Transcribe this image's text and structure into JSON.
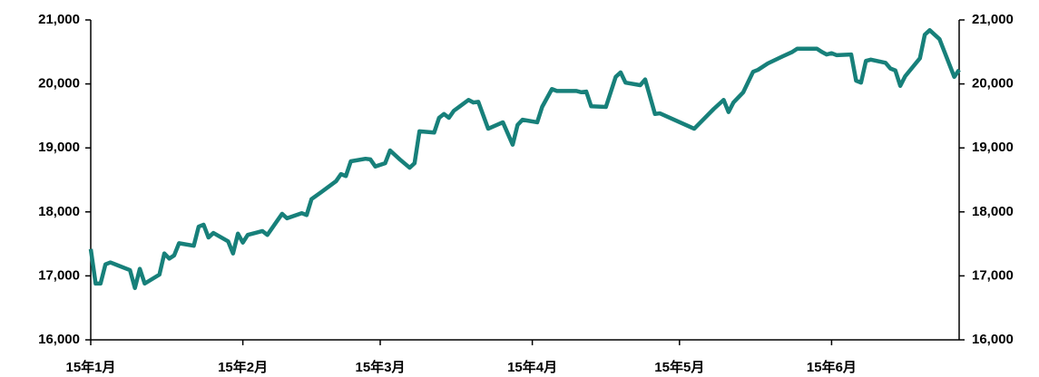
{
  "chart_data": {
    "type": "line",
    "x": [
      0,
      1,
      2,
      3,
      4,
      8,
      9,
      10,
      11,
      14,
      15,
      16,
      17,
      18,
      21,
      22,
      23,
      24,
      25,
      28,
      29,
      30,
      31,
      32,
      35,
      36,
      39,
      40,
      43,
      44,
      45,
      47,
      50,
      51,
      52,
      53,
      56,
      57,
      58,
      60,
      61,
      63,
      65,
      66,
      67,
      70,
      71,
      72,
      73,
      74,
      77,
      78,
      79,
      81,
      84,
      86,
      87,
      88,
      91,
      92,
      94,
      95,
      99,
      100,
      101,
      102,
      105,
      107,
      108,
      109,
      112,
      113,
      115,
      116,
      123,
      127,
      129,
      130,
      131,
      133,
      135,
      136,
      138,
      141,
      143,
      144,
      148,
      149,
      150,
      151,
      152,
      155,
      156,
      157,
      158,
      159,
      162,
      163,
      164,
      165,
      166,
      169,
      170,
      171,
      173,
      176,
      177
    ],
    "series": [
      {
        "name": "",
        "color": "#17807a",
        "values": [
          17420,
          16880,
          16880,
          17180,
          17210,
          17090,
          16810,
          17110,
          16880,
          17020,
          17350,
          17270,
          17320,
          17510,
          17470,
          17770,
          17800,
          17600,
          17670,
          17540,
          17350,
          17660,
          17520,
          17640,
          17700,
          17640,
          17970,
          17900,
          17980,
          17950,
          18200,
          18310,
          18480,
          18590,
          18560,
          18790,
          18830,
          18820,
          18710,
          18760,
          18960,
          18820,
          18690,
          18760,
          19260,
          19240,
          19470,
          19530,
          19470,
          19580,
          19750,
          19710,
          19720,
          19300,
          19400,
          19050,
          19360,
          19440,
          19400,
          19640,
          19920,
          19890,
          19890,
          19870,
          19880,
          19650,
          19640,
          20110,
          20180,
          20020,
          19980,
          20070,
          19530,
          19540,
          19300,
          19610,
          19750,
          19560,
          19710,
          19870,
          20190,
          20220,
          20320,
          20430,
          20500,
          20550,
          20550,
          20500,
          20460,
          20480,
          20450,
          20460,
          20050,
          20020,
          20360,
          20380,
          20330,
          20240,
          20210,
          19970,
          20120,
          20400,
          20770,
          20840,
          20700,
          20110,
          20220
        ]
      }
    ],
    "xlim": [
      0,
      177
    ],
    "xticks": [
      {
        "value": 0,
        "label": "15年1月"
      },
      {
        "value": 31,
        "label": "15年2月"
      },
      {
        "value": 59,
        "label": "15年3月"
      },
      {
        "value": 90,
        "label": "15年4月"
      },
      {
        "value": 120,
        "label": "15年5月"
      },
      {
        "value": 151,
        "label": "15年6月"
      }
    ],
    "ylim": [
      16000,
      21000
    ],
    "yticks": [
      {
        "value": 16000,
        "label": "16,000"
      },
      {
        "value": 17000,
        "label": "17,000"
      },
      {
        "value": 18000,
        "label": "18,000"
      },
      {
        "value": 19000,
        "label": "19,000"
      },
      {
        "value": 20000,
        "label": "20,000"
      },
      {
        "value": 21000,
        "label": "21,000"
      }
    ],
    "y2lim": [
      16000,
      21000
    ],
    "y2ticks": [
      {
        "value": 16000,
        "label": "16,000"
      },
      {
        "value": 17000,
        "label": "17,000"
      },
      {
        "value": 18000,
        "label": "18,000"
      },
      {
        "value": 19000,
        "label": "19,000"
      },
      {
        "value": 20000,
        "label": "20,000"
      },
      {
        "value": 21000,
        "label": "21,000"
      }
    ]
  }
}
